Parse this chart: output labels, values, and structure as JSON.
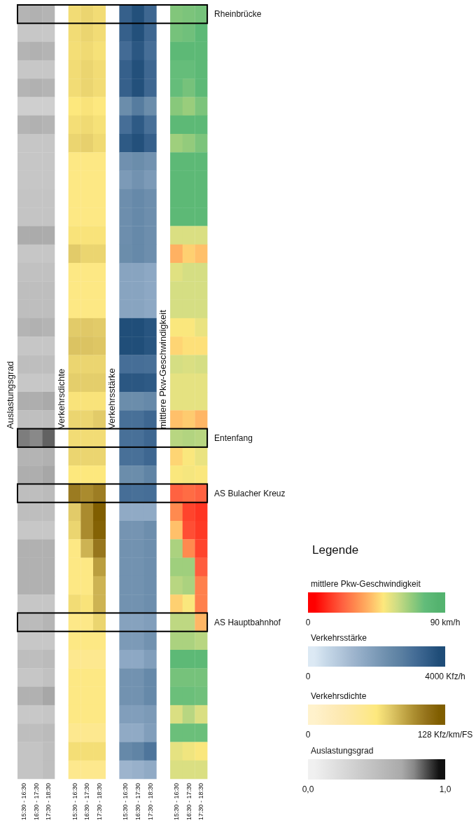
{
  "chart_data": [
    {
      "type": "heatmap",
      "ylabel": "Auslastungsgrad",
      "clabel": "Auslastungsgrad",
      "clim": [
        0,
        1
      ],
      "cticks": [
        {
          "value": 0,
          "label": "0,0"
        },
        {
          "value": 1,
          "label": "1,0"
        }
      ],
      "categories": [
        "15:30 - 16:30",
        "16:30 - 17:30",
        "17:30 - 18:30"
      ],
      "y_categories": [
        null,
        null,
        null,
        null,
        null,
        null,
        null,
        null,
        null,
        null,
        null,
        null,
        null,
        null,
        null,
        null,
        null,
        null,
        null,
        null,
        null,
        null,
        null,
        null,
        null,
        null,
        null,
        null,
        null,
        null,
        null,
        null,
        null,
        null,
        null,
        null,
        null,
        null,
        null,
        null,
        null,
        null
      ],
      "cells": [
        [
          0.59,
          0.62,
          0.59
        ],
        [
          0.42,
          0.42,
          0.41
        ],
        [
          0.59,
          0.62,
          0.59
        ],
        [
          0.42,
          0.42,
          0.42
        ],
        [
          0.59,
          0.62,
          0.59
        ],
        [
          0.35,
          0.35,
          0.35
        ],
        [
          0.59,
          0.62,
          0.59
        ],
        [
          0.43,
          0.43,
          0.43
        ],
        [
          0.43,
          0.43,
          0.43
        ],
        [
          0.43,
          0.43,
          0.43
        ],
        [
          0.45,
          0.45,
          0.45
        ],
        [
          0.45,
          0.45,
          0.45
        ],
        [
          0.66,
          0.67,
          0.66
        ],
        [
          0.43,
          0.43,
          0.43
        ],
        [
          0.47,
          0.47,
          0.47
        ],
        [
          0.5,
          0.5,
          0.5
        ],
        [
          0.5,
          0.5,
          0.5
        ],
        [
          0.59,
          0.62,
          0.59
        ],
        [
          0.43,
          0.43,
          0.43
        ],
        [
          0.5,
          0.5,
          0.5
        ],
        [
          0.42,
          0.42,
          0.42
        ],
        [
          0.65,
          0.65,
          0.68
        ],
        [
          0.49,
          0.49,
          0.5
        ],
        [
          0.79,
          0.77,
          0.83
        ],
        [
          0.59,
          0.59,
          0.62
        ],
        [
          0.65,
          0.65,
          0.69
        ],
        [
          0.5,
          0.5,
          0.53
        ],
        [
          0.5,
          0.5,
          0.5
        ],
        [
          0.42,
          0.42,
          0.42
        ],
        [
          0.62,
          0.62,
          0.62
        ],
        [
          0.62,
          0.62,
          0.62
        ],
        [
          0.62,
          0.62,
          0.62
        ],
        [
          0.43,
          0.43,
          0.43
        ],
        [
          0.53,
          0.53,
          0.58
        ],
        [
          0.42,
          0.42,
          0.42
        ],
        [
          0.5,
          0.5,
          0.53
        ],
        [
          0.43,
          0.43,
          0.47
        ],
        [
          0.62,
          0.62,
          0.69
        ],
        [
          0.41,
          0.41,
          0.43
        ],
        [
          0.5,
          0.5,
          0.53
        ],
        [
          0.45,
          0.45,
          0.5
        ],
        [
          0.45,
          0.45,
          0.5
        ]
      ]
    },
    {
      "type": "heatmap",
      "ylabel": "Verkehrsdichte",
      "clabel": "Verkehrsdichte",
      "clim": [
        0,
        128
      ],
      "cticks": [
        {
          "value": 0,
          "label": "0"
        },
        {
          "value": 128,
          "label": "128 Kfz/km/FS"
        }
      ],
      "categories": [
        "15:30 - 16:30",
        "16:30 - 17:30",
        "17:30 - 18:30"
      ],
      "y_categories": [
        null,
        null,
        null,
        null,
        null,
        null,
        null,
        null,
        null,
        null,
        null,
        null,
        null,
        null,
        null,
        null,
        null,
        null,
        null,
        null,
        null,
        null,
        null,
        null,
        null,
        null,
        null,
        null,
        null,
        null,
        null,
        null,
        null,
        null,
        null,
        null,
        null,
        null,
        null,
        null,
        null,
        null
      ],
      "cells": [
        [
          69,
          72,
          69
        ],
        [
          69,
          72,
          69
        ],
        [
          68,
          70,
          67
        ],
        [
          69,
          72,
          69
        ],
        [
          69,
          72,
          69
        ],
        [
          64,
          66,
          63
        ],
        [
          68,
          70,
          67
        ],
        [
          72,
          74,
          70
        ],
        [
          60,
          60,
          60
        ],
        [
          60,
          60,
          60
        ],
        [
          60,
          60,
          60
        ],
        [
          60,
          60,
          60
        ],
        [
          66,
          66,
          66
        ],
        [
          76,
          72,
          72
        ],
        [
          60,
          60,
          60
        ],
        [
          60,
          60,
          60
        ],
        [
          60,
          60,
          60
        ],
        [
          76,
          77,
          76
        ],
        [
          79,
          79,
          78
        ],
        [
          72,
          72,
          72
        ],
        [
          75,
          75,
          75
        ],
        [
          66,
          66,
          66
        ],
        [
          72,
          72,
          76
        ],
        [
          69,
          69,
          69
        ],
        [
          72,
          72,
          72
        ],
        [
          64,
          64,
          64
        ],
        [
          107,
          100,
          106
        ],
        [
          76,
          100,
          122
        ],
        [
          72,
          100,
          120
        ],
        [
          60,
          85,
          109
        ],
        [
          60,
          60,
          93
        ],
        [
          60,
          60,
          85
        ],
        [
          69,
          66,
          85
        ],
        [
          58,
          58,
          72
        ],
        [
          60,
          60,
          60
        ],
        [
          54,
          54,
          54
        ],
        [
          60,
          60,
          60
        ],
        [
          60,
          60,
          60
        ],
        [
          60,
          60,
          60
        ],
        [
          54,
          54,
          54
        ],
        [
          68,
          68,
          68
        ],
        [
          55,
          55,
          55
        ]
      ]
    },
    {
      "type": "heatmap",
      "ylabel": "Verkehrsstärke",
      "clabel": "Verkehrsstärke",
      "clim": [
        0,
        4000
      ],
      "cticks": [
        {
          "value": 0,
          "label": "0"
        },
        {
          "value": 4000,
          "label": "4000 Kfz/h"
        }
      ],
      "categories": [
        "15:30 - 16:30",
        "16:30 - 17:30",
        "17:30 - 18:30"
      ],
      "y_categories": [
        null,
        null,
        null,
        null,
        null,
        null,
        null,
        null,
        null,
        null,
        null,
        null,
        null,
        null,
        null,
        null,
        null,
        null,
        null,
        null,
        null,
        null,
        null,
        null,
        null,
        null,
        null,
        null,
        null,
        null,
        null,
        null,
        null,
        null,
        null,
        null,
        null,
        null,
        null,
        null,
        null,
        null
      ],
      "cells": [
        [
          3400,
          3750,
          3250
        ],
        [
          3400,
          3750,
          3250
        ],
        [
          3150,
          3600,
          3100
        ],
        [
          3400,
          3750,
          3250
        ],
        [
          3400,
          3750,
          3250
        ],
        [
          2350,
          2800,
          2350
        ],
        [
          3100,
          3550,
          3050
        ],
        [
          3550,
          3750,
          3400
        ],
        [
          2250,
          2350,
          2200
        ],
        [
          2000,
          2200,
          2000
        ],
        [
          2300,
          2450,
          2300
        ],
        [
          2300,
          2450,
          2300
        ],
        [
          2300,
          2450,
          2300
        ],
        [
          2350,
          2450,
          2300
        ],
        [
          1750,
          1750,
          1650
        ],
        [
          1750,
          1750,
          1650
        ],
        [
          1750,
          1750,
          1650
        ],
        [
          3800,
          3800,
          3650
        ],
        [
          3800,
          3800,
          3650
        ],
        [
          3100,
          3100,
          3050
        ],
        [
          3600,
          3600,
          3550
        ],
        [
          2350,
          2350,
          2450
        ],
        [
          3050,
          3050,
          3250
        ],
        [
          3050,
          3050,
          3250
        ],
        [
          3050,
          3050,
          3250
        ],
        [
          2350,
          2350,
          2600
        ],
        [
          3100,
          3050,
          3100
        ],
        [
          1600,
          1600,
          1600
        ],
        [
          2150,
          2150,
          2300
        ],
        [
          2200,
          2200,
          2300
        ],
        [
          2200,
          2200,
          2300
        ],
        [
          2200,
          2200,
          2300
        ],
        [
          2200,
          2200,
          2300
        ],
        [
          1800,
          1800,
          1900
        ],
        [
          2000,
          2000,
          2200
        ],
        [
          1650,
          1650,
          1900
        ],
        [
          2200,
          2200,
          2450
        ],
        [
          2200,
          2200,
          2450
        ],
        [
          1900,
          1900,
          2000
        ],
        [
          1600,
          1600,
          1900
        ],
        [
          2450,
          2600,
          2950
        ],
        [
          1350,
          1450,
          1600
        ]
      ]
    },
    {
      "type": "heatmap",
      "ylabel": "mittlere Pkw-Geschwindigkeit",
      "clabel": "mittlere Pkw-Geschwindigkeit",
      "legend_title": "Legende",
      "clim": [
        0,
        90
      ],
      "cticks": [
        {
          "value": 0,
          "label": "0"
        },
        {
          "value": 90,
          "label": "90 km/h"
        }
      ],
      "categories": [
        "15:30 - 16:30",
        "16:30 - 17:30",
        "17:30 - 18:30"
      ],
      "y_categories": [
        null,
        null,
        null,
        null,
        null,
        null,
        null,
        null,
        null,
        null,
        null,
        null,
        null,
        null,
        null,
        null,
        null,
        null,
        null,
        null,
        null,
        null,
        null,
        null,
        null,
        null,
        null,
        null,
        null,
        null,
        null,
        null,
        null,
        null,
        null,
        null,
        null,
        null,
        null,
        null,
        null,
        null
      ],
      "y2_categories": [
        "Rheinbrücke",
        null,
        null,
        null,
        null,
        null,
        null,
        null,
        null,
        null,
        null,
        null,
        null,
        null,
        null,
        null,
        null,
        null,
        null,
        null,
        null,
        null,
        null,
        "Entenfang",
        null,
        null,
        "AS Bulacher Kreuz",
        null,
        null,
        null,
        null,
        null,
        null,
        "AS Hauptbahnhof",
        null,
        null,
        null,
        null,
        null,
        null,
        null,
        null
      ],
      "cells": [
        [
          71,
          72,
          73
        ],
        [
          73,
          74,
          80
        ],
        [
          80,
          80,
          80
        ],
        [
          76,
          76,
          80
        ],
        [
          76,
          73,
          80
        ],
        [
          70,
          67,
          72
        ],
        [
          80,
          80,
          80
        ],
        [
          66,
          68,
          72
        ],
        [
          80,
          80,
          80
        ],
        [
          80,
          80,
          80
        ],
        [
          80,
          80,
          80
        ],
        [
          80,
          80,
          80
        ],
        [
          56,
          56,
          56
        ],
        [
          39,
          45,
          42
        ],
        [
          55,
          57,
          57
        ],
        [
          57,
          57,
          57
        ],
        [
          57,
          57,
          57
        ],
        [
          50,
          50,
          53
        ],
        [
          46,
          48,
          48
        ],
        [
          57,
          56,
          57
        ],
        [
          54,
          54,
          54
        ],
        [
          54,
          54,
          54
        ],
        [
          42,
          44,
          40
        ],
        [
          62,
          63,
          62
        ],
        [
          46,
          50,
          53
        ],
        [
          50,
          51,
          50
        ],
        [
          23,
          25,
          23
        ],
        [
          31,
          17,
          14
        ],
        [
          42,
          19,
          15
        ],
        [
          64,
          31,
          17
        ],
        [
          66,
          66,
          22
        ],
        [
          62,
          64,
          29
        ],
        [
          45,
          50,
          29
        ],
        [
          61,
          61,
          40
        ],
        [
          64,
          64,
          62
        ],
        [
          80,
          80,
          80
        ],
        [
          73,
          73,
          73
        ],
        [
          75,
          75,
          74
        ],
        [
          56,
          62,
          56
        ],
        [
          75,
          75,
          75
        ],
        [
          54,
          52,
          50
        ],
        [
          56,
          56,
          56
        ]
      ]
    }
  ]
}
